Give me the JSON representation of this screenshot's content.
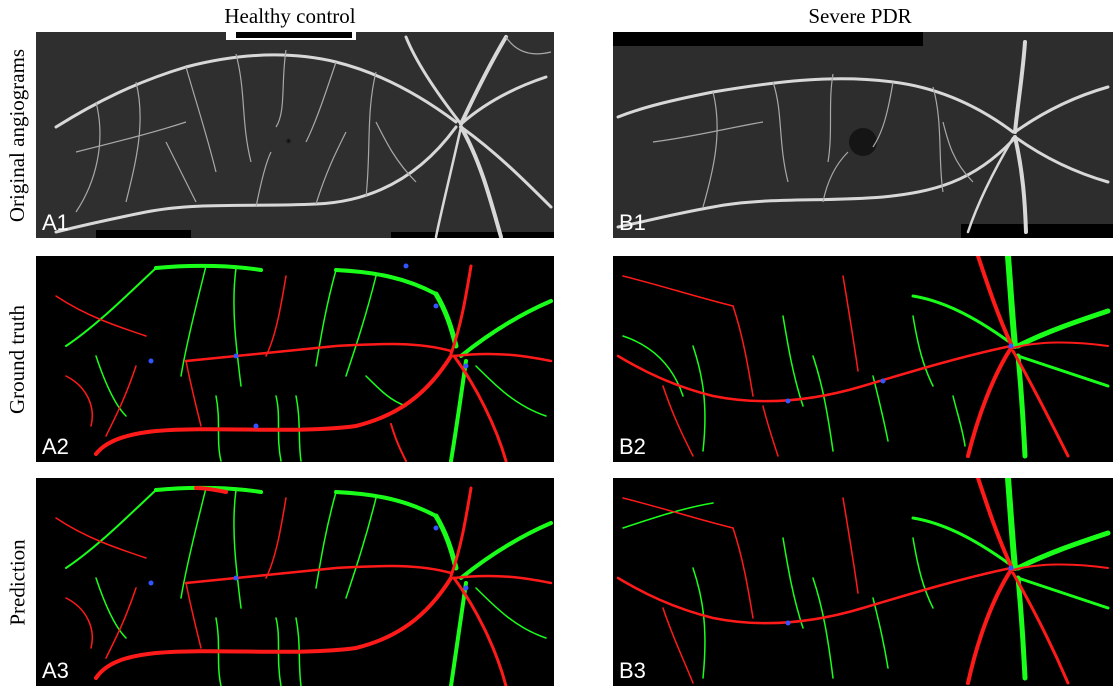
{
  "columns": {
    "left": "Healthy control",
    "right": "Severe PDR"
  },
  "rows": {
    "r1": "Original angiograms",
    "r2": "Ground truth",
    "r3": "Prediction"
  },
  "panels": {
    "a1": "A1",
    "a2": "A2",
    "a3": "A3",
    "b1": "B1",
    "b2": "B2",
    "b3": "B3"
  },
  "colors": {
    "background": "#000000",
    "artery": "#ff1a1a",
    "vein": "#1aff1a",
    "crossing": "#3355ff",
    "angiogram_vessel": "#dcdcdc"
  }
}
